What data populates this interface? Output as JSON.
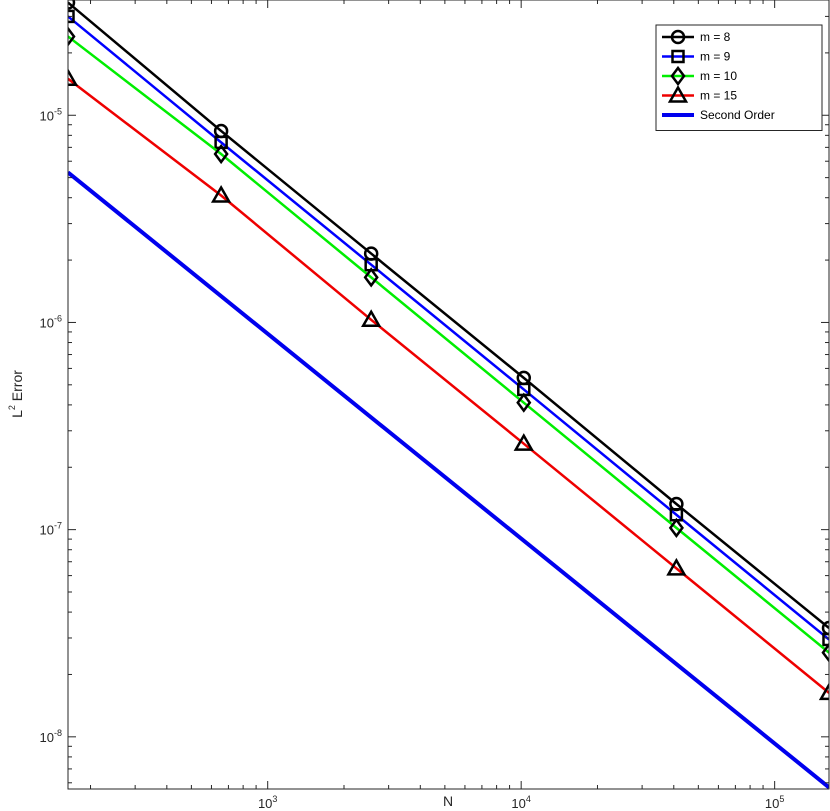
{
  "chart_data": {
    "type": "line",
    "title": "",
    "xlabel": "N",
    "ylabel": "L^2 Error",
    "ylabel_parts": {
      "base": "L",
      "sup": "2",
      "rest": " Error"
    },
    "xscale": "log",
    "yscale": "log",
    "xlim": [
      163,
      163840
    ],
    "ylim": [
      5.6e-09,
      3.6e-05
    ],
    "grid": false,
    "legend_position": "top-right",
    "x_ticks": [
      {
        "value": 1000,
        "base": "10",
        "exp": "3"
      },
      {
        "value": 10000,
        "base": "10",
        "exp": "4"
      },
      {
        "value": 100000,
        "base": "10",
        "exp": "5"
      }
    ],
    "y_ticks": [
      {
        "value": 1e-08,
        "base": "10",
        "exp": "-8"
      },
      {
        "value": 1e-07,
        "base": "10",
        "exp": "-7"
      },
      {
        "value": 1e-06,
        "base": "10",
        "exp": "-6"
      },
      {
        "value": 1e-05,
        "base": "10",
        "exp": "-5"
      }
    ],
    "x": [
      163,
      655,
      2560,
      10240,
      40960,
      163840
    ],
    "series": [
      {
        "name": "m = 8",
        "color": "#000000",
        "marker": "circle",
        "values": [
          3.5e-05,
          8.4e-06,
          2.15e-06,
          5.4e-07,
          1.33e-07,
          3.35e-08
        ]
      },
      {
        "name": "m = 9",
        "color": "#0000ff",
        "marker": "square",
        "values": [
          3e-05,
          7.4e-06,
          1.9e-06,
          4.75e-07,
          1.18e-07,
          2.95e-08
        ]
      },
      {
        "name": "m = 10",
        "color": "#00ee00",
        "marker": "diamond",
        "values": [
          2.4e-05,
          6.5e-06,
          1.65e-06,
          4.1e-07,
          1.02e-07,
          2.55e-08
        ]
      },
      {
        "name": "m = 15",
        "color": "#ee0000",
        "marker": "triangle",
        "values": [
          1.5e-05,
          4.1e-06,
          1.03e-06,
          2.6e-07,
          6.5e-08,
          1.63e-08
        ]
      },
      {
        "name": "Second Order",
        "color": "#0000ee",
        "marker": "none",
        "linewidth": 4,
        "values": [
          5.3e-06,
          null,
          null,
          null,
          null,
          5.7e-09
        ]
      }
    ]
  }
}
